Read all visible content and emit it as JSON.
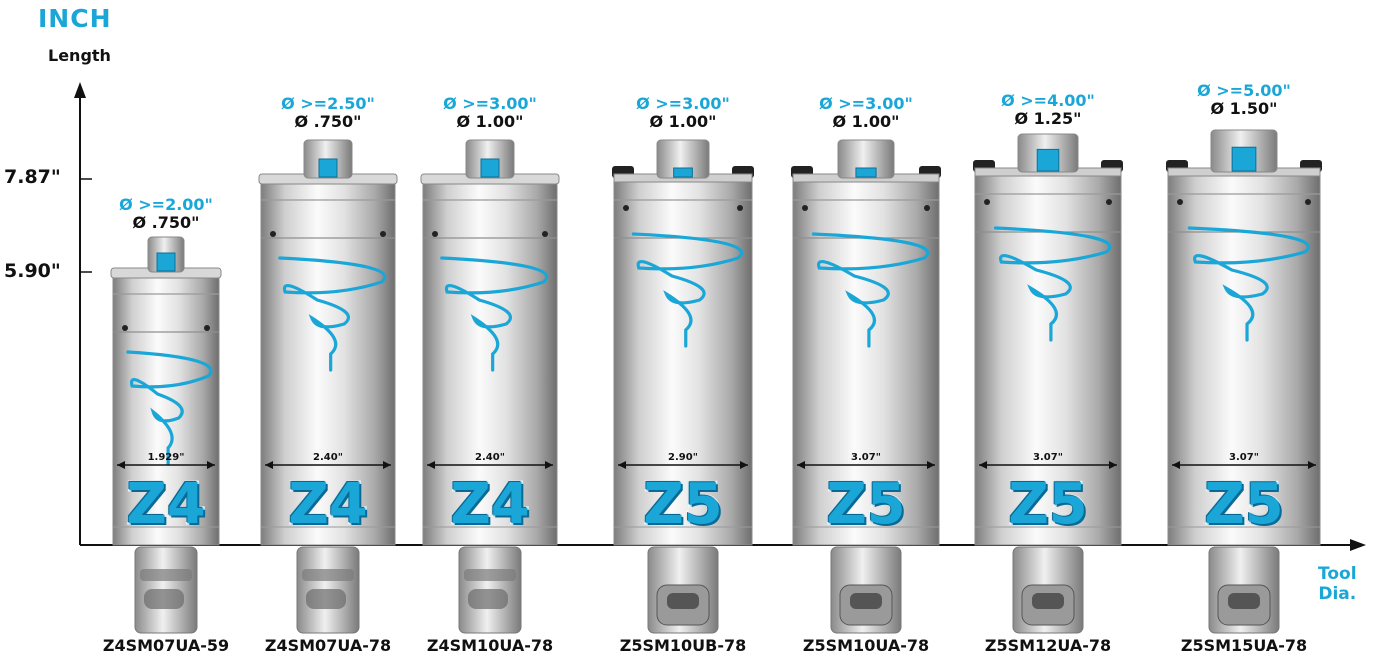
{
  "title": "INCH",
  "y_axis_label": "Length",
  "x_axis_label_line1": "Tool",
  "x_axis_label_line2": "Dia.",
  "y_ticks": [
    "7.87\"",
    "5.90\""
  ],
  "colors": {
    "accent": "#1aa7d8",
    "text": "#111111",
    "body_light": "#f2f2f2",
    "body_dark": "#8c8c8c",
    "cap_dark": "#222222"
  },
  "holders": [
    {
      "model": "Z4SM07UA-59",
      "min_cut": "Ø >=2.00\"",
      "shank": "Ø .750\"",
      "width": "1.929\"",
      "series": "Z4",
      "style": "z4",
      "length": "5.90\""
    },
    {
      "model": "Z4SM07UA-78",
      "min_cut": "Ø >=2.50\"",
      "shank": "Ø .750\"",
      "width": "2.40\"",
      "series": "Z4",
      "style": "z4",
      "length": "7.87\""
    },
    {
      "model": "Z4SM10UA-78",
      "min_cut": "Ø >=3.00\"",
      "shank": "Ø 1.00\"",
      "width": "2.40\"",
      "series": "Z4",
      "style": "z4",
      "length": "7.87\""
    },
    {
      "model": "Z5SM10UB-78",
      "min_cut": "Ø >=3.00\"",
      "shank": "Ø 1.00\"",
      "width": "2.90\"",
      "series": "Z5",
      "style": "z5",
      "length": "7.87\""
    },
    {
      "model": "Z5SM10UA-78",
      "min_cut": "Ø >=3.00\"",
      "shank": "Ø 1.00\"",
      "width": "3.07\"",
      "series": "Z5",
      "style": "z5",
      "length": "7.87\""
    },
    {
      "model": "Z5SM12UA-78",
      "min_cut": "Ø >=4.00\"",
      "shank": "Ø 1.25\"",
      "width": "3.07\"",
      "series": "Z5",
      "style": "z5",
      "length": "7.87\""
    },
    {
      "model": "Z5SM15UA-78",
      "min_cut": "Ø >=5.00\"",
      "shank": "Ø 1.50\"",
      "width": "3.07\"",
      "series": "Z5",
      "style": "z5",
      "length": "7.87\""
    }
  ]
}
